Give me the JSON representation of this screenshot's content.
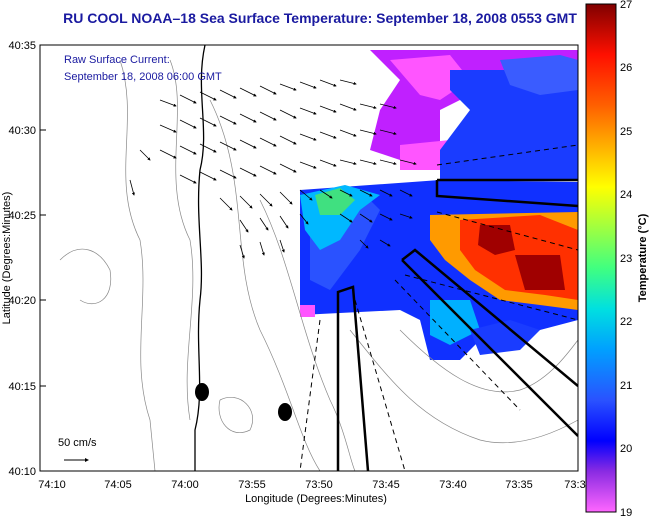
{
  "title": "RU COOL  NOAA–18  Sea Surface Temperature:  September 18, 2008 0553 GMT",
  "annotation": {
    "line1": "Raw Surface Current:",
    "line2": "September 18, 2008 06:00 GMT"
  },
  "scale_label": "50 cm/s",
  "axes": {
    "xlabel": "Longitude (Degrees:Minutes)",
    "ylabel": "Latitude (Degrees:Minutes)",
    "x_ticks": [
      "74:10",
      "74:05",
      "74:00",
      "73:55",
      "73:50",
      "73:45",
      "73:40",
      "73:35",
      "73:3"
    ],
    "y_ticks": [
      "40:35",
      "40:30",
      "40:25",
      "40:20",
      "40:15",
      "40:10"
    ]
  },
  "colorbar": {
    "label": "Temperature (°C)",
    "ticks": [
      "27",
      "26",
      "25",
      "24",
      "23",
      "22",
      "21",
      "20",
      "19"
    ],
    "range": [
      19,
      27
    ]
  },
  "chart_data": {
    "type": "heatmap",
    "title": "RU COOL  NOAA–18  Sea Surface Temperature:  September 18, 2008 0553 GMT",
    "xlabel": "Longitude (Degrees:Minutes)",
    "ylabel": "Latitude (Degrees:Minutes)",
    "xlim": [
      "74:10",
      "73:30"
    ],
    "ylim": [
      "40:10",
      "40:35"
    ],
    "colorbar_range": [
      19,
      27
    ],
    "colorbar_label": "Temperature (°C)",
    "legend": "colorbar right"
  },
  "colors": {
    "title": "#1a1aa0",
    "land": "#ffffff",
    "contour": "#888888"
  }
}
